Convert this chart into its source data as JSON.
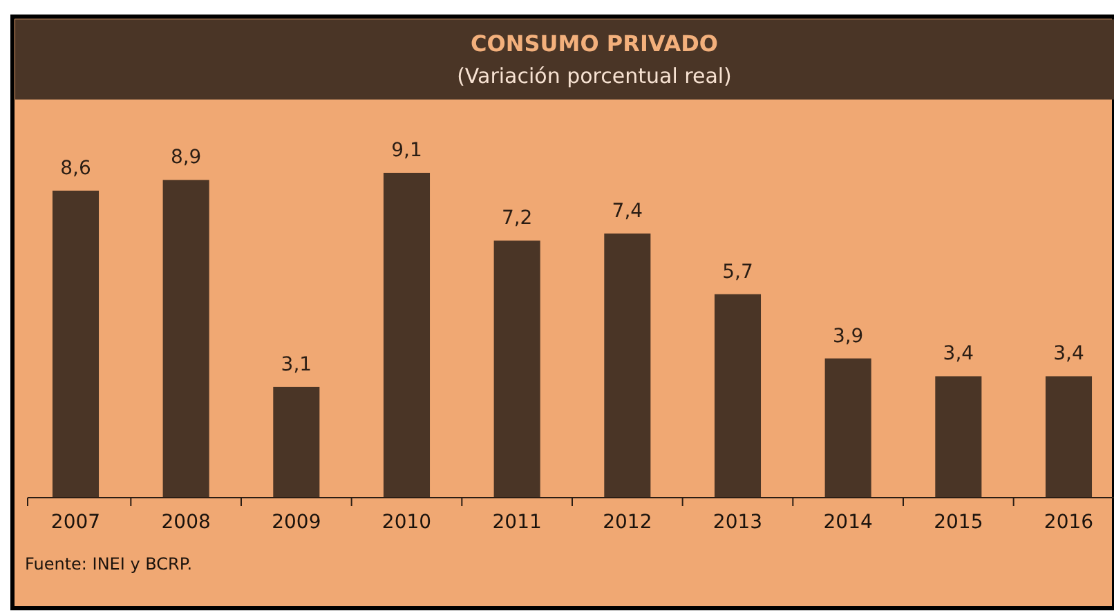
{
  "chart_data": {
    "type": "bar",
    "title": "CONSUMO PRIVADO",
    "subtitle": "(Variación porcentual real)",
    "categories": [
      "2007",
      "2008",
      "2009",
      "2010",
      "2011",
      "2012",
      "2013",
      "2014",
      "2015",
      "2016"
    ],
    "values": [
      8.6,
      8.9,
      3.1,
      9.1,
      7.2,
      7.4,
      5.7,
      3.9,
      3.4,
      3.4
    ],
    "value_labels": [
      "8,6",
      "8,9",
      "3,1",
      "9,1",
      "7,2",
      "7,4",
      "5,7",
      "3,9",
      "3,4",
      "3,4"
    ],
    "color": "#4a3526",
    "annotations": [
      "Fuente: INEI y BCRP."
    ]
  }
}
